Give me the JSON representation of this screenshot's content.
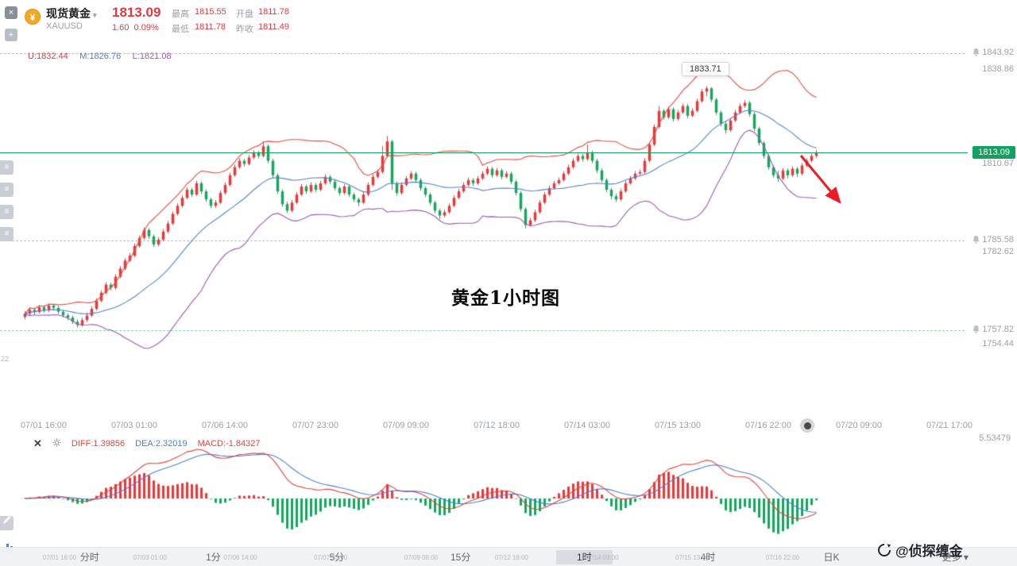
{
  "header": {
    "symbol_name": "现货黄金",
    "symbol_code": "XAUUSD",
    "price": "1813.09",
    "change": "1.60",
    "change_pct": "0.09%",
    "stats": [
      {
        "label": "最高",
        "value": "1815.55"
      },
      {
        "label": "最低",
        "value": "1811.78"
      },
      {
        "label": "开盘",
        "value": "1811.78"
      },
      {
        "label": "昨收",
        "value": "1811.49"
      }
    ]
  },
  "indicator_labels": {
    "boll_u": "U:1832.44",
    "boll_m": "M:1826.76",
    "boll_l": "L:1821.08"
  },
  "overlays": {
    "peak_tooltip": "1833.71",
    "center_watermark": "黄金1小时图",
    "brand_watermark": "@侦探缠金",
    "left_badge": "22"
  },
  "price_axis": {
    "alerts": [
      "1843.92",
      "1785.58",
      "1757.82"
    ],
    "grids": [
      "1838.86",
      "1810.67",
      "1782.62",
      "1754.44"
    ],
    "last_price_label": "1813.09"
  },
  "macd_panel": {
    "diff_label": "DIFF:1.39856",
    "dea_label": "DEA:2.32019",
    "macd_label": "MACD:-1.84327",
    "scale_top": "5.53479"
  },
  "footer": {
    "tabs": [
      "分时",
      "1分",
      "5分",
      "15分",
      "1时",
      "4时",
      "日K",
      "更多"
    ],
    "selected": "1时"
  },
  "chart_data": {
    "type": "candlestick",
    "title": "现货黄金 XAUUSD 1小时",
    "x_labels": [
      "07/01 16:00",
      "07/03 01:00",
      "07/06 14:00",
      "07/07 23:00",
      "07/09 09:00",
      "07/12 18:00",
      "07/14 03:00",
      "07/15 13:00",
      "07/16 22:00",
      "07/20 09:00",
      "07/21 17:00"
    ],
    "y_axis": {
      "visible_labels": [
        1843.92,
        1838.86,
        1813.09,
        1810.67,
        1785.58,
        1782.62,
        1757.82,
        1754.44
      ]
    },
    "last_price": 1813.09,
    "peak_price": 1833.71,
    "indicators": {
      "boll": {
        "u": 1832.44,
        "m": 1826.76,
        "l": 1821.08
      },
      "macd": {
        "diff": 1.39856,
        "dea": 2.32019,
        "macd": -1.84327,
        "scale_top": 5.53479
      }
    },
    "colors": {
      "up": "#e23b3b",
      "down": "#1ba35e",
      "boll_upper": "#e24c3f",
      "boll_mid": "#4f83d6",
      "boll_lower": "#9b59b6",
      "price_line": "#12a15e",
      "macd_pos": "#e23b3b",
      "macd_neg": "#1ba35e",
      "diff_line": "#e0453c",
      "dea_line": "#4a7fd4"
    },
    "candles": [
      [
        1762.0,
        1763.8,
        1761.2,
        1763.0
      ],
      [
        1763.0,
        1764.9,
        1762.4,
        1764.2
      ],
      [
        1764.2,
        1764.8,
        1762.7,
        1763.5
      ],
      [
        1763.5,
        1765.7,
        1763.0,
        1765.0
      ],
      [
        1765.0,
        1765.6,
        1763.3,
        1764.0
      ],
      [
        1764.0,
        1766.2,
        1763.5,
        1765.5
      ],
      [
        1765.5,
        1766.1,
        1764.0,
        1764.8
      ],
      [
        1764.8,
        1765.4,
        1762.9,
        1763.6
      ],
      [
        1763.6,
        1764.2,
        1761.8,
        1762.5
      ],
      [
        1762.5,
        1763.1,
        1761.0,
        1761.8
      ],
      [
        1761.8,
        1762.4,
        1759.8,
        1760.5
      ],
      [
        1760.5,
        1761.2,
        1758.7,
        1759.5
      ],
      [
        1759.5,
        1761.8,
        1759.0,
        1761.0
      ],
      [
        1761.0,
        1763.2,
        1760.4,
        1762.4
      ],
      [
        1762.4,
        1765.3,
        1761.9,
        1764.5
      ],
      [
        1764.5,
        1767.8,
        1764.0,
        1767.0
      ],
      [
        1767.0,
        1770.3,
        1766.5,
        1769.5
      ],
      [
        1769.5,
        1772.8,
        1769.0,
        1772.0
      ],
      [
        1772.0,
        1772.6,
        1770.2,
        1771.0
      ],
      [
        1771.0,
        1775.3,
        1770.5,
        1774.5
      ],
      [
        1774.5,
        1777.8,
        1774.0,
        1777.0
      ],
      [
        1777.0,
        1780.3,
        1776.5,
        1779.5
      ],
      [
        1779.5,
        1781.8,
        1779.0,
        1781.0
      ],
      [
        1781.0,
        1784.8,
        1780.5,
        1784.0
      ],
      [
        1784.0,
        1787.3,
        1783.5,
        1786.5
      ],
      [
        1786.5,
        1789.8,
        1786.0,
        1789.0
      ],
      [
        1789.0,
        1789.6,
        1786.2,
        1787.0
      ],
      [
        1787.0,
        1787.6,
        1783.7,
        1784.5
      ],
      [
        1784.5,
        1786.8,
        1783.9,
        1786.0
      ],
      [
        1786.0,
        1789.3,
        1785.5,
        1788.5
      ],
      [
        1788.5,
        1791.8,
        1788.0,
        1791.0
      ],
      [
        1791.0,
        1794.8,
        1790.5,
        1794.0
      ],
      [
        1794.0,
        1797.3,
        1793.5,
        1796.5
      ],
      [
        1796.5,
        1799.8,
        1796.0,
        1799.0
      ],
      [
        1799.0,
        1802.3,
        1798.5,
        1801.5
      ],
      [
        1801.5,
        1802.1,
        1799.2,
        1800.0
      ],
      [
        1800.0,
        1804.3,
        1799.5,
        1803.5
      ],
      [
        1803.5,
        1804.1,
        1800.2,
        1801.0
      ],
      [
        1801.0,
        1801.6,
        1797.7,
        1798.5
      ],
      [
        1798.5,
        1799.1,
        1795.7,
        1796.5
      ],
      [
        1796.5,
        1798.3,
        1795.9,
        1797.5
      ],
      [
        1797.5,
        1801.3,
        1797.0,
        1800.5
      ],
      [
        1800.5,
        1803.8,
        1800.0,
        1803.0
      ],
      [
        1803.0,
        1806.8,
        1802.5,
        1806.0
      ],
      [
        1806.0,
        1809.3,
        1805.5,
        1808.5
      ],
      [
        1808.5,
        1811.3,
        1808.0,
        1810.5
      ],
      [
        1810.5,
        1811.1,
        1808.7,
        1809.5
      ],
      [
        1809.5,
        1812.3,
        1809.0,
        1811.5
      ],
      [
        1811.5,
        1813.8,
        1811.0,
        1813.0
      ],
      [
        1813.0,
        1813.6,
        1811.2,
        1812.0
      ],
      [
        1812.0,
        1816.5,
        1811.5,
        1815.0
      ],
      [
        1815.0,
        1815.6,
        1809.7,
        1810.5
      ],
      [
        1810.5,
        1811.1,
        1805.2,
        1806.0
      ],
      [
        1806.0,
        1806.6,
        1800.2,
        1801.0
      ],
      [
        1801.0,
        1801.6,
        1796.2,
        1797.0
      ],
      [
        1797.0,
        1797.8,
        1794.2,
        1795.0
      ],
      [
        1795.0,
        1798.3,
        1794.5,
        1797.5
      ],
      [
        1797.5,
        1800.8,
        1797.0,
        1800.0
      ],
      [
        1800.0,
        1803.3,
        1799.5,
        1802.5
      ],
      [
        1802.5,
        1803.1,
        1800.2,
        1801.0
      ],
      [
        1801.0,
        1803.8,
        1800.5,
        1803.0
      ],
      [
        1803.0,
        1803.6,
        1800.7,
        1801.5
      ],
      [
        1801.5,
        1804.3,
        1801.0,
        1803.5
      ],
      [
        1803.5,
        1806.3,
        1803.0,
        1805.5
      ],
      [
        1805.5,
        1806.1,
        1803.2,
        1804.0
      ],
      [
        1804.0,
        1804.6,
        1801.2,
        1802.0
      ],
      [
        1802.0,
        1802.6,
        1799.7,
        1800.5
      ],
      [
        1800.5,
        1803.3,
        1800.0,
        1802.5
      ],
      [
        1802.5,
        1803.1,
        1799.2,
        1800.0
      ],
      [
        1800.0,
        1800.6,
        1797.7,
        1798.5
      ],
      [
        1798.5,
        1799.1,
        1796.4,
        1797.5
      ],
      [
        1797.5,
        1800.8,
        1797.0,
        1800.0
      ],
      [
        1800.0,
        1803.8,
        1799.5,
        1803.0
      ],
      [
        1803.0,
        1806.3,
        1802.5,
        1805.5
      ],
      [
        1805.5,
        1807.8,
        1805.0,
        1807.0
      ],
      [
        1807.0,
        1815.0,
        1806.5,
        1812.0
      ],
      [
        1812.0,
        1818.2,
        1811.5,
        1816.5
      ],
      [
        1816.5,
        1817.1,
        1801.5,
        1803.5
      ],
      [
        1803.5,
        1804.1,
        1799.7,
        1800.5
      ],
      [
        1800.5,
        1803.8,
        1800.0,
        1803.0
      ],
      [
        1803.0,
        1805.8,
        1802.5,
        1805.0
      ],
      [
        1805.0,
        1807.3,
        1804.5,
        1806.5
      ],
      [
        1806.5,
        1807.1,
        1803.7,
        1804.5
      ],
      [
        1804.5,
        1805.1,
        1801.2,
        1802.0
      ],
      [
        1802.0,
        1802.6,
        1799.2,
        1800.0
      ],
      [
        1800.0,
        1800.6,
        1796.7,
        1797.5
      ],
      [
        1797.5,
        1798.1,
        1794.2,
        1795.0
      ],
      [
        1795.0,
        1795.6,
        1792.4,
        1793.5
      ],
      [
        1793.5,
        1795.3,
        1792.9,
        1794.5
      ],
      [
        1794.5,
        1797.3,
        1794.0,
        1796.5
      ],
      [
        1796.5,
        1799.8,
        1796.0,
        1799.0
      ],
      [
        1799.0,
        1801.8,
        1798.5,
        1801.0
      ],
      [
        1801.0,
        1803.8,
        1800.5,
        1803.0
      ],
      [
        1803.0,
        1805.3,
        1802.5,
        1804.5
      ],
      [
        1804.5,
        1805.1,
        1802.7,
        1803.5
      ],
      [
        1803.5,
        1805.8,
        1803.0,
        1805.0
      ],
      [
        1805.0,
        1807.3,
        1804.5,
        1806.5
      ],
      [
        1806.5,
        1808.8,
        1806.0,
        1808.0
      ],
      [
        1808.0,
        1808.6,
        1805.2,
        1806.0
      ],
      [
        1806.0,
        1808.3,
        1805.5,
        1807.5
      ],
      [
        1807.5,
        1808.1,
        1804.7,
        1805.5
      ],
      [
        1805.5,
        1807.3,
        1805.0,
        1806.5
      ],
      [
        1806.5,
        1807.1,
        1803.2,
        1804.0
      ],
      [
        1804.0,
        1804.6,
        1799.7,
        1800.5
      ],
      [
        1800.5,
        1801.1,
        1794.7,
        1795.5
      ],
      [
        1795.5,
        1796.1,
        1789.5,
        1790.5
      ],
      [
        1790.5,
        1792.8,
        1790.0,
        1792.0
      ],
      [
        1792.0,
        1795.3,
        1791.5,
        1794.5
      ],
      [
        1794.5,
        1798.3,
        1794.0,
        1797.5
      ],
      [
        1797.5,
        1800.8,
        1797.0,
        1800.0
      ],
      [
        1800.0,
        1802.8,
        1799.5,
        1802.0
      ],
      [
        1802.0,
        1804.3,
        1801.5,
        1803.5
      ],
      [
        1803.5,
        1805.3,
        1803.0,
        1804.5
      ],
      [
        1804.5,
        1807.3,
        1804.0,
        1806.5
      ],
      [
        1806.5,
        1809.3,
        1806.0,
        1808.5
      ],
      [
        1808.5,
        1811.3,
        1808.0,
        1810.5
      ],
      [
        1810.5,
        1812.8,
        1810.0,
        1812.0
      ],
      [
        1812.0,
        1812.6,
        1810.2,
        1811.0
      ],
      [
        1811.0,
        1815.5,
        1810.5,
        1813.0
      ],
      [
        1813.0,
        1813.6,
        1809.7,
        1810.5
      ],
      [
        1810.5,
        1811.1,
        1806.7,
        1807.5
      ],
      [
        1807.5,
        1808.1,
        1803.7,
        1804.5
      ],
      [
        1804.5,
        1805.1,
        1800.7,
        1801.5
      ],
      [
        1801.5,
        1802.1,
        1798.5,
        1799.5
      ],
      [
        1799.5,
        1800.3,
        1797.7,
        1798.5
      ],
      [
        1798.5,
        1801.8,
        1798.0,
        1801.0
      ],
      [
        1801.0,
        1804.3,
        1800.5,
        1803.5
      ],
      [
        1803.5,
        1805.8,
        1803.0,
        1805.0
      ],
      [
        1805.0,
        1807.3,
        1804.5,
        1806.5
      ],
      [
        1806.5,
        1807.8,
        1806.0,
        1807.0
      ],
      [
        1807.0,
        1811.3,
        1806.5,
        1810.5
      ],
      [
        1810.5,
        1816.3,
        1810.0,
        1815.5
      ],
      [
        1815.5,
        1821.8,
        1815.0,
        1821.0
      ],
      [
        1821.0,
        1827.5,
        1820.5,
        1826.0
      ],
      [
        1826.0,
        1826.6,
        1823.2,
        1824.0
      ],
      [
        1824.0,
        1827.3,
        1823.5,
        1826.5
      ],
      [
        1826.5,
        1827.1,
        1822.7,
        1823.5
      ],
      [
        1823.5,
        1826.3,
        1823.0,
        1825.5
      ],
      [
        1825.5,
        1828.3,
        1825.0,
        1827.5
      ],
      [
        1827.5,
        1828.1,
        1823.7,
        1824.5
      ],
      [
        1824.5,
        1826.8,
        1824.0,
        1826.0
      ],
      [
        1826.0,
        1829.8,
        1825.5,
        1829.0
      ],
      [
        1829.0,
        1832.8,
        1828.5,
        1832.0
      ],
      [
        1832.0,
        1833.71,
        1830.5,
        1833.0
      ],
      [
        1833.0,
        1833.4,
        1828.7,
        1829.5
      ],
      [
        1829.5,
        1830.1,
        1824.7,
        1825.5
      ],
      [
        1825.5,
        1826.1,
        1821.2,
        1822.0
      ],
      [
        1822.0,
        1822.6,
        1818.9,
        1820.0
      ],
      [
        1820.0,
        1823.8,
        1819.5,
        1823.0
      ],
      [
        1823.0,
        1826.3,
        1822.5,
        1825.5
      ],
      [
        1825.5,
        1828.3,
        1825.0,
        1827.5
      ],
      [
        1827.5,
        1829.3,
        1827.0,
        1828.5
      ],
      [
        1828.5,
        1829.1,
        1824.2,
        1825.0
      ],
      [
        1825.0,
        1825.6,
        1819.7,
        1820.5
      ],
      [
        1820.5,
        1821.1,
        1815.2,
        1816.0
      ],
      [
        1816.0,
        1816.6,
        1811.2,
        1812.0
      ],
      [
        1812.0,
        1812.6,
        1807.7,
        1808.5
      ],
      [
        1808.5,
        1809.1,
        1805.2,
        1806.0
      ],
      [
        1806.0,
        1807.4,
        1803.9,
        1805.0
      ],
      [
        1805.0,
        1808.3,
        1804.5,
        1807.5
      ],
      [
        1807.5,
        1808.1,
        1805.0,
        1806.0
      ],
      [
        1806.0,
        1808.8,
        1805.5,
        1808.0
      ],
      [
        1808.0,
        1808.6,
        1805.4,
        1806.5
      ],
      [
        1806.5,
        1809.8,
        1806.0,
        1809.0
      ],
      [
        1809.0,
        1811.3,
        1808.5,
        1810.5
      ],
      [
        1810.5,
        1812.8,
        1810.0,
        1812.0
      ],
      [
        1812.0,
        1813.9,
        1811.3,
        1813.09
      ]
    ]
  }
}
